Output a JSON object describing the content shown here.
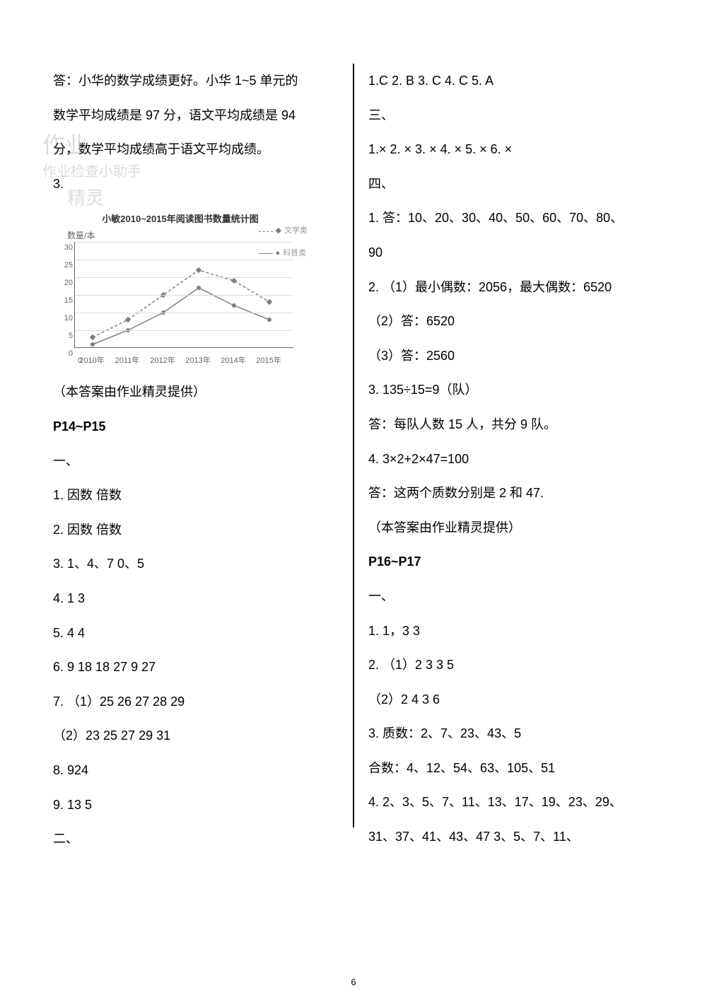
{
  "left": {
    "p1": "答：小华的数学成绩更好。小华 1~5 单元的",
    "p2": "数学平均成绩是 97 分，语文平均成绩是 94",
    "p3": "分，数学平均成绩高于语文平均成绩。",
    "q3": "3.",
    "credit": "（本答案由作业精灵提供）",
    "sect": "P14~P15",
    "h1": "一、",
    "l1": "1.  因数   倍数",
    "l2": "2.  因数   倍数",
    "l3": "3.  1、4、7   0、5",
    "l4": "4.  1   3",
    "l5": "5.  4   4",
    "l6": "6.  9   18     18   27    9   27",
    "l7": "7. （1）25   26   27   28   29",
    "l8": "（2）23   25   27   29   31",
    "l9": "8.  924",
    "l10": "9.  13   5",
    "h2": "二、"
  },
  "right": {
    "r1": "1.C   2. B   3. C   4. C   5. A",
    "h3": "三、",
    "r2": "1.×   2.  ×   3.  ×   4.  ×   5.  ×   6.  ×",
    "h4": "四、",
    "r3": "1.  答：10、20、30、40、50、60、70、80、",
    "r3b": "90",
    "r4": "2. （1）最小偶数：2056，最大偶数：6520",
    "r5": "（2）答：6520",
    "r6": "（3）答：2560",
    "r7": "3.  135÷15=9（队）",
    "r8": "答：每队人数 15 人，共分 9 队。",
    "r9": "4.  3×2+2×47=100",
    "r10": "答：这两个质数分别是 2 和 47.",
    "credit2": "（本答案由作业精灵提供）",
    "sect2": "P16~P17",
    "h5": "一、",
    "r11": "1.  1，3   3",
    "r12": "2. （1）2   3   3   5",
    "r13": "（2）2   4   3   6",
    "r14": "3.  质数：2、7、23、43、5",
    "r15": "合数：4、12、54、63、105、51",
    "r16": "4.  2、3、5、7、11、13、17、19、23、29、",
    "r17": "31、37、41、43、47       3、5、7、11、"
  },
  "chart": {
    "title": "小敏2010~2015年阅读图书数量统计图",
    "ylabel": "数量/本",
    "legend1": "文学类",
    "legend2": "科普类",
    "ylim": [
      0,
      30
    ],
    "ytick_step": 5,
    "yticks": [
      "0",
      "5",
      "10",
      "15",
      "20",
      "25",
      "30"
    ],
    "xticks": [
      "0",
      "2010年",
      "2011年",
      "2012年",
      "2013年",
      "2014年",
      "2015年"
    ],
    "grid_color": "#dddddd",
    "axis_color": "#666666",
    "series1": {
      "color": "#7e7e7e",
      "dash": true,
      "values": [
        3,
        8,
        15,
        22,
        19,
        13
      ]
    },
    "series2": {
      "color": "#7e7e7e",
      "dash": false,
      "values": [
        1,
        5,
        10,
        17,
        12,
        8
      ]
    }
  },
  "watermarks": {
    "top1": "作业",
    "top2": "作业检查小助手",
    "top3": "精灵"
  },
  "page_number": "6"
}
